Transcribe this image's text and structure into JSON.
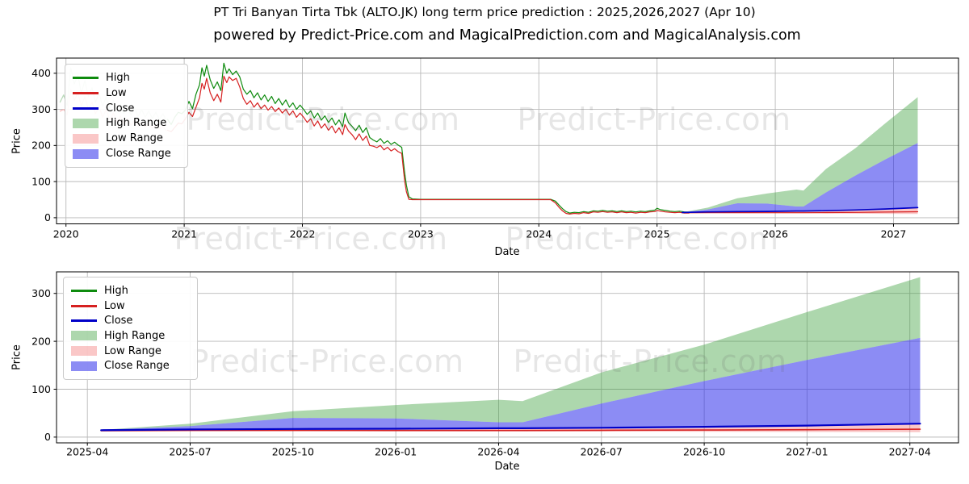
{
  "figure": {
    "title": "PT Tri Banyan Tirta Tbk (ALTO.JK) long term price prediction : 2025,2026,2027 (Apr 10)",
    "subtitle": "powered by Predict-Price.com and MagicalPrediction.com and MagicalAnalysis.com",
    "watermark": "Predict-Price.com"
  },
  "colors": {
    "grid": "#b9b9b9",
    "spine": "#000000",
    "high_line": "#0e8b0e",
    "low_line": "#d62020",
    "close_line": "#0000c8",
    "high_light": "#b7d9b7",
    "low_light": "#f6b6b6",
    "high_range_fill": "rgba(60,160,60,0.42)",
    "low_range_fill": "rgba(240,70,70,0.30)",
    "close_range_fill": "rgba(45,45,235,0.55)"
  },
  "legend": {
    "items": [
      {
        "label": "High",
        "swatch": "line",
        "color_key": "high_line"
      },
      {
        "label": "Low",
        "swatch": "line",
        "color_key": "low_line"
      },
      {
        "label": "Close",
        "swatch": "line",
        "color_key": "close_line"
      },
      {
        "label": "High Range",
        "swatch": "patch",
        "color_key": "high_range_fill"
      },
      {
        "label": "Low Range",
        "swatch": "patch",
        "color_key": "low_range_fill"
      },
      {
        "label": "Close Range",
        "swatch": "patch",
        "color_key": "close_range_fill"
      }
    ]
  },
  "forecast": {
    "note": "prediction bands shared by both subplots; t_months = months since 2025-04",
    "t_months": [
      0.4,
      3,
      6,
      9,
      12,
      12.7,
      15,
      18,
      21,
      24.3
    ],
    "high_upper": [
      15,
      28,
      54,
      67,
      78,
      75,
      135,
      193,
      261,
      334
    ],
    "close_upper": [
      15,
      23,
      40,
      39,
      31,
      31,
      70,
      117,
      161,
      207
    ],
    "close": [
      14.5,
      16,
      17,
      17.5,
      18.5,
      18.5,
      19.5,
      21.5,
      24,
      28
    ],
    "low": [
      13.5,
      14,
      14,
      13.8,
      13.8,
      13.8,
      14.2,
      14.8,
      15.5,
      16.5
    ],
    "low_lower": [
      13,
      13,
      12.6,
      12.2,
      12,
      12,
      11.6,
      11.2,
      10.8,
      10.2
    ]
  },
  "chart_data": [
    {
      "id": "history-and-forecast",
      "type": "line",
      "xlabel": "Date",
      "ylabel": "Price",
      "grid": true,
      "x_range": [
        2019.92,
        2027.55
      ],
      "y_range": [
        -17,
        442
      ],
      "x_ticks": [
        {
          "v": 2020,
          "label": "2020"
        },
        {
          "v": 2021,
          "label": "2021"
        },
        {
          "v": 2022,
          "label": "2022"
        },
        {
          "v": 2023,
          "label": "2023"
        },
        {
          "v": 2024,
          "label": "2024"
        },
        {
          "v": 2025,
          "label": "2025"
        },
        {
          "v": 2026,
          "label": "2026"
        },
        {
          "v": 2027,
          "label": "2027"
        }
      ],
      "y_ticks": [
        {
          "v": 0,
          "label": "0"
        },
        {
          "v": 100,
          "label": "100"
        },
        {
          "v": 200,
          "label": "200"
        },
        {
          "v": 300,
          "label": "300"
        },
        {
          "v": 400,
          "label": "400"
        }
      ],
      "forecast_x": {
        "mul": 0.0833333,
        "add": 2025.18
      },
      "line_widths": {
        "hist": 1.2,
        "low": 1.2,
        "close": 1.7
      },
      "history": {
        "light_x": [
          2019.95,
          2019.98,
          2020.01,
          2020.04,
          2020.07,
          2020.1,
          2020.13,
          2020.16,
          2020.19,
          2020.22,
          2020.25,
          2020.28,
          2020.31,
          2020.34,
          2020.37,
          2020.4,
          2020.43,
          2020.46,
          2020.49,
          2020.52,
          2020.55,
          2020.58,
          2020.61,
          2020.64,
          2020.67,
          2020.7,
          2020.73,
          2020.76,
          2020.79,
          2020.82,
          2020.85
        ],
        "light_high": [
          320,
          340,
          310,
          415,
          370,
          395,
          345,
          380,
          335,
          360,
          320,
          345,
          308,
          335,
          300,
          325,
          295,
          315,
          288,
          308,
          285,
          305,
          280,
          300,
          278,
          296,
          275,
          292,
          272,
          288,
          268
        ],
        "light_low": [
          295,
          300,
          285,
          355,
          325,
          345,
          310,
          335,
          300,
          320,
          288,
          308,
          278,
          300,
          270,
          290,
          265,
          282,
          260,
          275,
          256,
          270,
          252,
          265,
          250,
          260,
          248,
          256,
          246,
          252,
          240
        ],
        "solid_x": [
          2020.86,
          2020.89,
          2020.92,
          2020.95,
          2020.98,
          2021.01,
          2021.04,
          2021.07,
          2021.1,
          2021.13,
          2021.15,
          2021.17,
          2021.19,
          2021.22,
          2021.25,
          2021.28,
          2021.31,
          2021.335,
          2021.36,
          2021.38,
          2021.41,
          2021.44,
          2021.47,
          2021.5,
          2021.53,
          2021.56,
          2021.59,
          2021.62,
          2021.65,
          2021.68,
          2021.71,
          2021.74,
          2021.77,
          2021.8,
          2021.83,
          2021.86,
          2021.89,
          2021.92,
          2021.95,
          2021.98,
          2022.01,
          2022.04,
          2022.07,
          2022.1,
          2022.13,
          2022.16,
          2022.19,
          2022.22,
          2022.25,
          2022.28,
          2022.31,
          2022.34,
          2022.36,
          2022.39,
          2022.42,
          2022.45,
          2022.48,
          2022.51,
          2022.54,
          2022.57,
          2022.6,
          2022.63,
          2022.66,
          2022.69,
          2022.72,
          2022.75,
          2022.78,
          2022.81,
          2022.84,
          2022.865,
          2022.88,
          2022.9,
          2022.93,
          2023.0,
          2023.3,
          2023.6,
          2023.9,
          2024.1,
          2024.14,
          2024.17,
          2024.2,
          2024.23,
          2024.26,
          2024.3,
          2024.34,
          2024.38,
          2024.42,
          2024.46,
          2024.5,
          2024.54,
          2024.58,
          2024.62,
          2024.66,
          2024.7,
          2024.74,
          2024.78,
          2024.82,
          2024.86,
          2024.9,
          2024.94,
          2024.98,
          2025.0,
          2025.03,
          2025.07,
          2025.11,
          2025.15,
          2025.19,
          2025.23,
          2025.27
        ],
        "solid_high": [
          272,
          258,
          278,
          292,
          288,
          298,
          322,
          302,
          342,
          368,
          415,
          392,
          422,
          382,
          358,
          376,
          352,
          428,
          400,
          412,
          396,
          406,
          390,
          356,
          342,
          352,
          332,
          346,
          326,
          340,
          322,
          336,
          316,
          330,
          312,
          326,
          306,
          318,
          300,
          312,
          300,
          286,
          296,
          276,
          290,
          270,
          282,
          264,
          276,
          257,
          271,
          252,
          290,
          263,
          253,
          241,
          256,
          236,
          249,
          222,
          215,
          210,
          219,
          206,
          213,
          203,
          209,
          201,
          195,
          125,
          90,
          58,
          52,
          51,
          51,
          51,
          51,
          51,
          46,
          35,
          25,
          17,
          13,
          15,
          14,
          17,
          15,
          19,
          18,
          20,
          18,
          19,
          17,
          19,
          17,
          18,
          16,
          18,
          17,
          19,
          21,
          26,
          22,
          20,
          18,
          17,
          18,
          16,
          15
        ],
        "solid_low": [
          242,
          238,
          250,
          262,
          260,
          274,
          292,
          280,
          306,
          332,
          372,
          356,
          386,
          346,
          324,
          342,
          320,
          392,
          374,
          390,
          380,
          386,
          362,
          330,
          314,
          324,
          306,
          318,
          302,
          312,
          298,
          308,
          294,
          304,
          290,
          300,
          284,
          296,
          278,
          290,
          278,
          264,
          274,
          254,
          268,
          248,
          260,
          242,
          254,
          235,
          249,
          230,
          258,
          240,
          230,
          216,
          232,
          214,
          226,
          200,
          198,
          194,
          200,
          188,
          195,
          185,
          191,
          183,
          178,
          102,
          72,
          51,
          50,
          50,
          50,
          50,
          50,
          50,
          41,
          29,
          19,
          12,
          10,
          12,
          11,
          14,
          12,
          16,
          15,
          17,
          15,
          16,
          14,
          16,
          14,
          15,
          13,
          15,
          14,
          16,
          17,
          20,
          18,
          16,
          15,
          14,
          15,
          13,
          13
        ]
      }
    },
    {
      "id": "forecast-zoom",
      "type": "line",
      "xlabel": "Date",
      "ylabel": "Price",
      "grid": true,
      "x_range": [
        -0.9,
        25.42
      ],
      "y_range": [
        -12,
        345
      ],
      "x_ticks": [
        {
          "v": 0,
          "label": "2025-04"
        },
        {
          "v": 3,
          "label": "2025-07"
        },
        {
          "v": 6,
          "label": "2025-10"
        },
        {
          "v": 9,
          "label": "2026-01"
        },
        {
          "v": 12,
          "label": "2026-04"
        },
        {
          "v": 15,
          "label": "2026-07"
        },
        {
          "v": 18,
          "label": "2026-10"
        },
        {
          "v": 21,
          "label": "2027-01"
        },
        {
          "v": 24,
          "label": "2027-04"
        }
      ],
      "y_ticks": [
        {
          "v": 0,
          "label": "0"
        },
        {
          "v": 100,
          "label": "100"
        },
        {
          "v": 200,
          "label": "200"
        },
        {
          "v": 300,
          "label": "300"
        }
      ],
      "forecast_x": {
        "mul": 1,
        "add": 0
      },
      "line_widths": {
        "hist": 1.6,
        "low": 1.6,
        "close": 2.2
      }
    }
  ]
}
